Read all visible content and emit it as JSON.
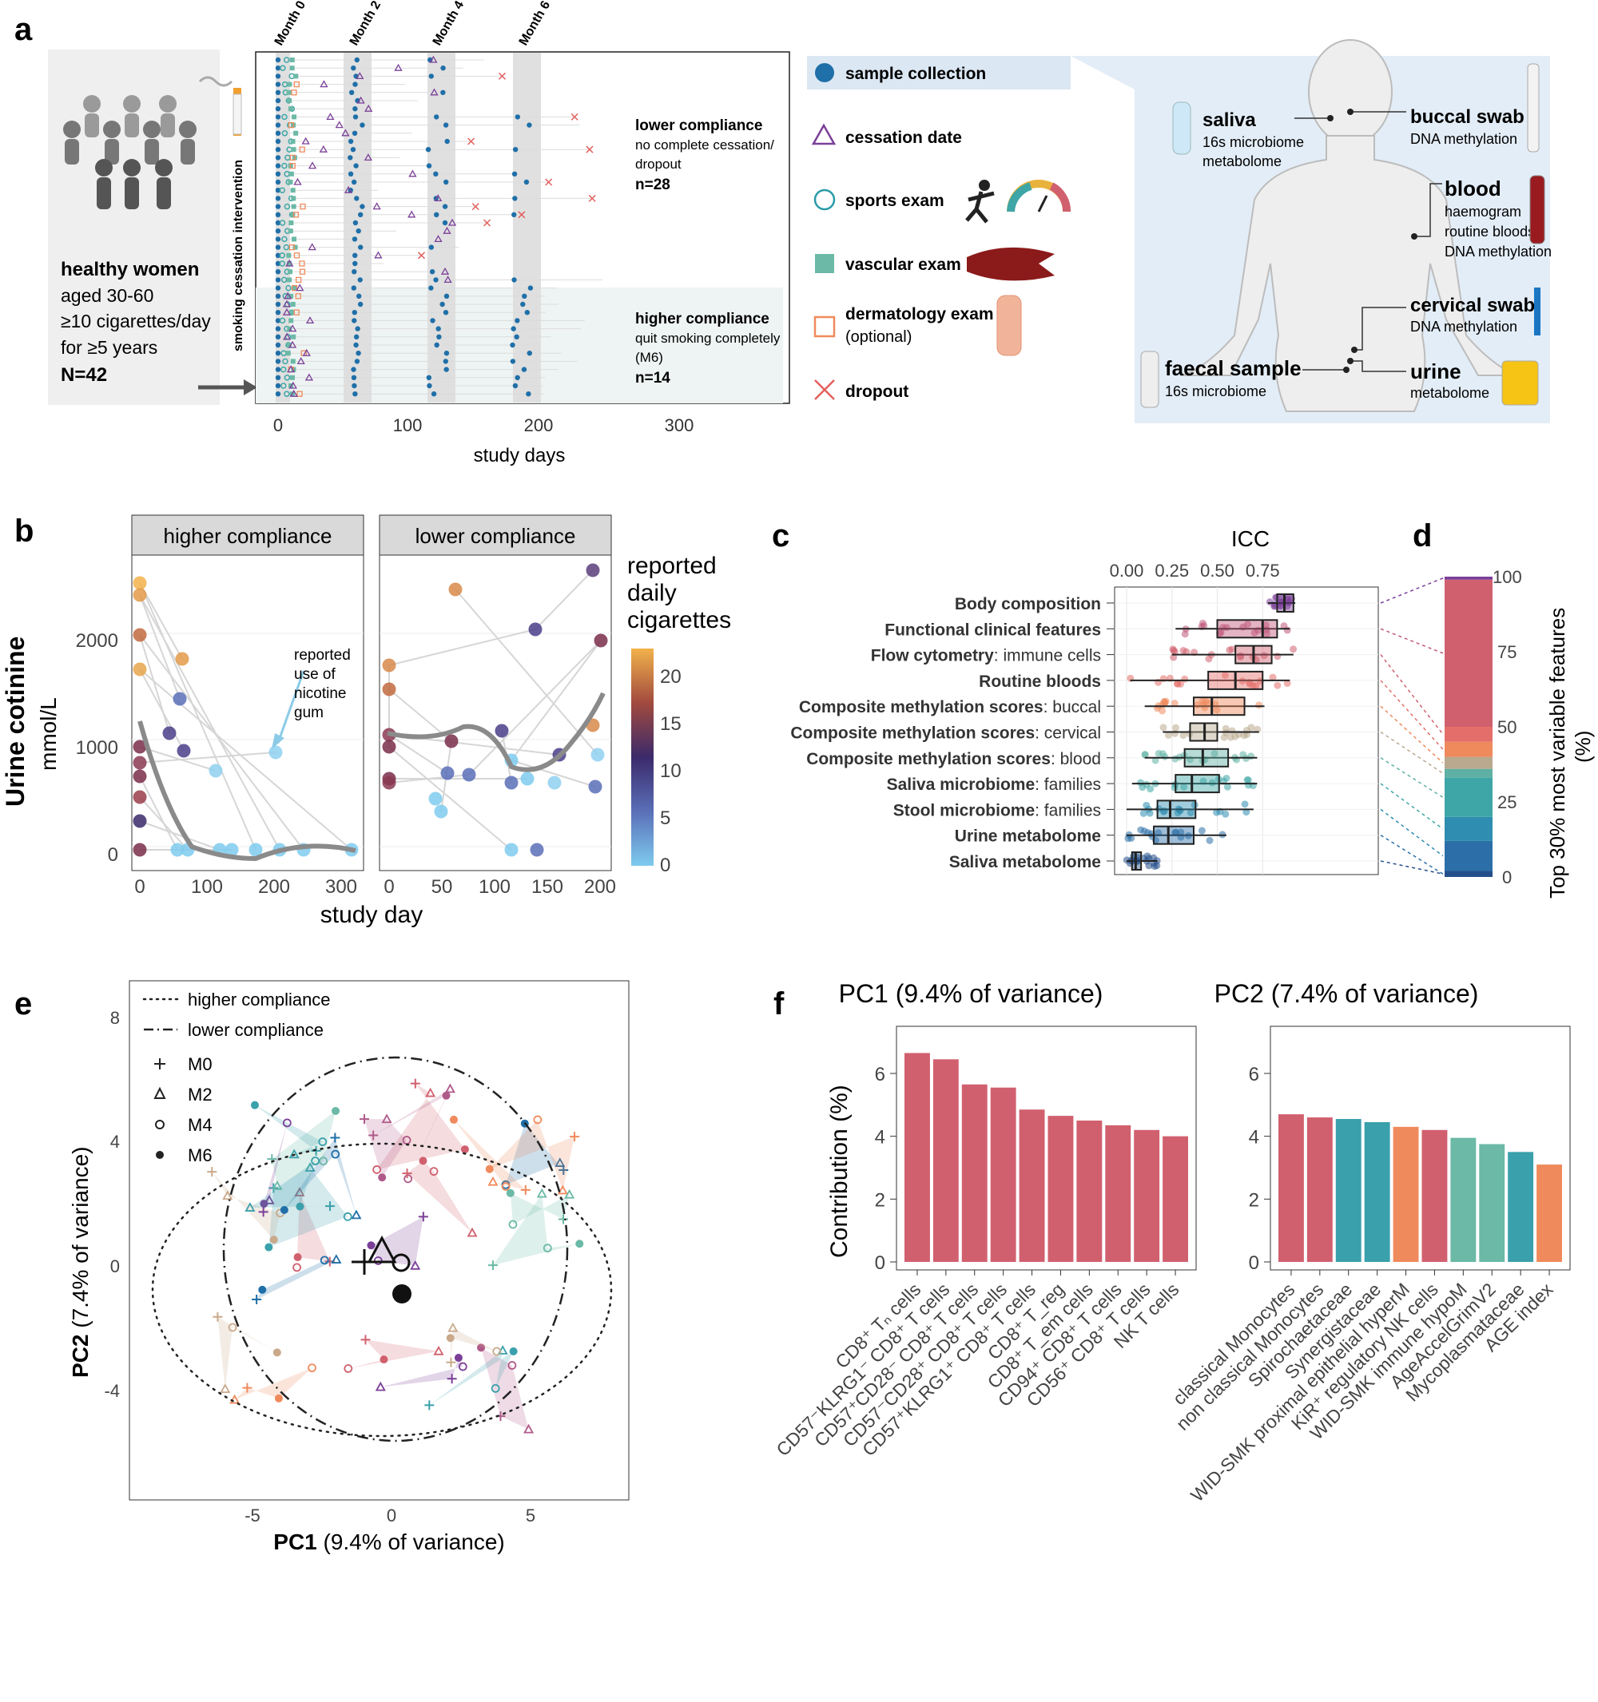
{
  "panel_labels": {
    "a": "a",
    "b": "b",
    "c": "c",
    "d": "d",
    "e": "e",
    "f": "f"
  },
  "colors": {
    "blue": "#1f6fa8",
    "teal": "#3ea6a6",
    "green": "#6bb9a6",
    "red": "#d1606f",
    "orange": "#ef8a5c",
    "purple": "#7b3f98",
    "tan": "#c9a98a",
    "grey": "#888888"
  },
  "panel_a": {
    "cohort_title": "healthy women",
    "cohort_lines": [
      "aged 30-60",
      "≥10 cigarettes/day",
      "for ≥5 years"
    ],
    "cohort_n": "N=42",
    "intervention_label": "smoking cessation intervention",
    "months": [
      "Month 0",
      "Month 2",
      "Month 4",
      "Month 6"
    ],
    "x_ticks": [
      "0",
      "100",
      "200",
      "300"
    ],
    "x_label": "study days",
    "lower_title": "lower compliance",
    "lower_lines": [
      "no complete cessation/",
      "dropout"
    ],
    "lower_n": "n=28",
    "higher_title": "higher compliance",
    "higher_lines": [
      "quit smoking completely",
      "(M6)"
    ],
    "higher_n": "n=14",
    "legend": [
      {
        "label": "sample collection",
        "icon": "filled-circle"
      },
      {
        "label": "cessation date",
        "icon": "triangle"
      },
      {
        "label": "sports exam",
        "icon": "open-circle"
      },
      {
        "label": "vascular exam",
        "icon": "filled-square"
      },
      {
        "label": "dermatology exam",
        "sub": "(optional)",
        "icon": "open-square"
      },
      {
        "label": "dropout",
        "icon": "cross"
      }
    ],
    "samples": [
      {
        "title": "saliva",
        "lines": [
          "16s microbiome",
          "metabolome"
        ]
      },
      {
        "title": "buccal swab",
        "lines": [
          "DNA methylation"
        ]
      },
      {
        "title": "blood",
        "lines": [
          "haemogram",
          "routine bloods",
          "DNA methylation"
        ]
      },
      {
        "title": "cervical swab",
        "lines": [
          "DNA methylation"
        ]
      },
      {
        "title": "faecal sample",
        "lines": [
          "16s microbiome"
        ]
      },
      {
        "title": "urine",
        "lines": [
          "metabolome"
        ]
      }
    ]
  },
  "panel_b": {
    "y_label": "Urine cotinine",
    "y_unit": "mmol/L",
    "x_label": "study day",
    "facets": [
      "higher compliance",
      "lower compliance"
    ],
    "legend_title_lines": [
      "reported",
      "daily",
      "cigarettes"
    ],
    "legend_ticks": [
      "20",
      "15",
      "10",
      "5",
      "0"
    ],
    "annotation_lines": [
      "reported",
      "use of",
      "nicotine",
      "gum"
    ],
    "y_ticks": [
      "0",
      "1000",
      "2000"
    ],
    "x_ticks_left": [
      "0",
      "100",
      "200",
      "300"
    ],
    "x_ticks_right": [
      "0",
      "50",
      "100",
      "150",
      "200"
    ]
  },
  "panel_c": {
    "axis_title": "ICC",
    "x_ticks": [
      "0.00",
      "0.25",
      "0.50",
      "0.75"
    ],
    "rows": [
      {
        "bold": "Body composition",
        "rest": "",
        "q1": 0.83,
        "med": 0.87,
        "q3": 0.92,
        "lo": 0.78,
        "hi": 0.93,
        "color": "#7b3f98"
      },
      {
        "bold": "Functional clinical features",
        "rest": "",
        "q1": 0.5,
        "med": 0.75,
        "q3": 0.83,
        "lo": 0.27,
        "hi": 0.9,
        "color": "#c0587a"
      },
      {
        "bold": "Flow cytometry",
        "rest": ": immune cells",
        "q1": 0.6,
        "med": 0.7,
        "q3": 0.8,
        "lo": 0.25,
        "hi": 0.92,
        "color": "#d1606f"
      },
      {
        "bold": "Routine bloods",
        "rest": "",
        "q1": 0.45,
        "med": 0.6,
        "q3": 0.75,
        "lo": 0.02,
        "hi": 0.9,
        "color": "#e46f6a"
      },
      {
        "bold": "Composite methylation scores",
        "rest": ": buccal",
        "q1": 0.37,
        "med": 0.47,
        "q3": 0.65,
        "lo": 0.1,
        "hi": 0.76,
        "color": "#ef8a5c"
      },
      {
        "bold": "Composite methylation scores",
        "rest": ": cervical",
        "q1": 0.35,
        "med": 0.43,
        "q3": 0.5,
        "lo": 0.2,
        "hi": 0.73,
        "color": "#b9a98e"
      },
      {
        "bold": "Composite methylation scores",
        "rest": ": blood",
        "q1": 0.32,
        "med": 0.42,
        "q3": 0.56,
        "lo": 0.1,
        "hi": 0.72,
        "color": "#5fb0a4"
      },
      {
        "bold": "Saliva microbiome",
        "rest": ": families",
        "q1": 0.27,
        "med": 0.36,
        "q3": 0.51,
        "lo": 0.03,
        "hi": 0.72,
        "color": "#3ea6a6"
      },
      {
        "bold": "Stool microbiome",
        "rest": ": families",
        "q1": 0.17,
        "med": 0.24,
        "q3": 0.38,
        "lo": 0.0,
        "hi": 0.7,
        "color": "#2e8db0"
      },
      {
        "bold": "Urine metabolome",
        "rest": "",
        "q1": 0.15,
        "med": 0.23,
        "q3": 0.37,
        "lo": 0.0,
        "hi": 0.55,
        "color": "#2c6fa8"
      },
      {
        "bold": "Saliva metabolome",
        "rest": "",
        "q1": 0.03,
        "med": 0.05,
        "q3": 0.08,
        "lo": 0.0,
        "hi": 0.17,
        "color": "#244f8a"
      }
    ]
  },
  "panel_d": {
    "axis_title_lines": [
      "Top 30% most variable features",
      "(%)"
    ],
    "ticks": [
      "0",
      "25",
      "50",
      "75",
      "100"
    ],
    "segments": [
      {
        "from": 0,
        "to": 2,
        "color": "#244f8a"
      },
      {
        "from": 2,
        "to": 12,
        "color": "#2c6fa8"
      },
      {
        "from": 12,
        "to": 20,
        "color": "#2e8db0"
      },
      {
        "from": 20,
        "to": 33,
        "color": "#3ea6a6"
      },
      {
        "from": 33,
        "to": 36,
        "color": "#5fb0a4"
      },
      {
        "from": 36,
        "to": 40,
        "color": "#b9a98e"
      },
      {
        "from": 40,
        "to": 45,
        "color": "#ef8a5c"
      },
      {
        "from": 45,
        "to": 50,
        "color": "#e46f6a"
      },
      {
        "from": 50,
        "to": 99,
        "color": "#d1606f"
      },
      {
        "from": 99,
        "to": 100,
        "color": "#7b3f98"
      }
    ]
  },
  "panel_e": {
    "x_label_bold": "PC1",
    "x_label_rest": " (9.4% of variance)",
    "y_label_bold": "PC2",
    "y_label_rest": " (7.4% of variance)",
    "x_ticks": [
      "-5",
      "0",
      "5"
    ],
    "y_ticks": [
      "-4",
      "0",
      "4",
      "8"
    ],
    "legend_lines": [
      "higher compliance",
      "lower compliance"
    ],
    "legend_shapes": [
      "M0",
      "M2",
      "M4",
      "M6"
    ]
  },
  "chart_data": [
    {
      "type": "bar",
      "title": "PC1 (9.4% of variance)",
      "ylabel": "Contribution (%)",
      "ylim": [
        0,
        7.5
      ],
      "y_ticks": [
        "0",
        "2",
        "4",
        "6"
      ],
      "categories": [
        "CD8⁺ Tₙ cells",
        "CD57⁻KLRG1⁻ CD8⁺ T cells",
        "CD57⁺CD28⁻ CD8⁺ T cells",
        "CD57⁻CD28⁺ CD8⁺ T cells",
        "CD57⁺KLRG1⁺ CD8⁺ T cells",
        "CD8⁺ T_reg",
        "CD8⁺ T_em cells",
        "CD94⁺ CD8⁺ T cells",
        "CD56⁺ CD8⁺ T cells",
        "NK T cells"
      ],
      "values": [
        6.65,
        6.45,
        5.65,
        5.55,
        4.85,
        4.65,
        4.5,
        4.35,
        4.2,
        4.0
      ],
      "colors": [
        "#d1606f",
        "#d1606f",
        "#d1606f",
        "#d1606f",
        "#d1606f",
        "#d1606f",
        "#d1606f",
        "#d1606f",
        "#d1606f",
        "#d1606f"
      ]
    },
    {
      "type": "bar",
      "title": "PC2 (7.4% of variance)",
      "ylabel": "",
      "ylim": [
        0,
        7.5
      ],
      "y_ticks": [
        "0",
        "2",
        "4",
        "6"
      ],
      "categories": [
        "classical Monocytes",
        "non classical Monocytes",
        "Spirochaetaceae",
        "Synergistaceae",
        "WID-SMK proximal epithelial hyperM",
        "KiR⁺ regulatory NK cells",
        "WID-SMK immune hypoM",
        "AgeAccelGrimV2",
        "Mycoplasmataceae",
        "AGE index"
      ],
      "values": [
        4.7,
        4.6,
        4.55,
        4.45,
        4.3,
        4.2,
        3.95,
        3.75,
        3.5,
        3.1
      ],
      "colors": [
        "#d1606f",
        "#d1606f",
        "#3aa0ab",
        "#3aa0ab",
        "#ef8a5c",
        "#d1606f",
        "#6bb9a6",
        "#6bb9a6",
        "#3aa0ab",
        "#ef8a5c"
      ]
    }
  ]
}
